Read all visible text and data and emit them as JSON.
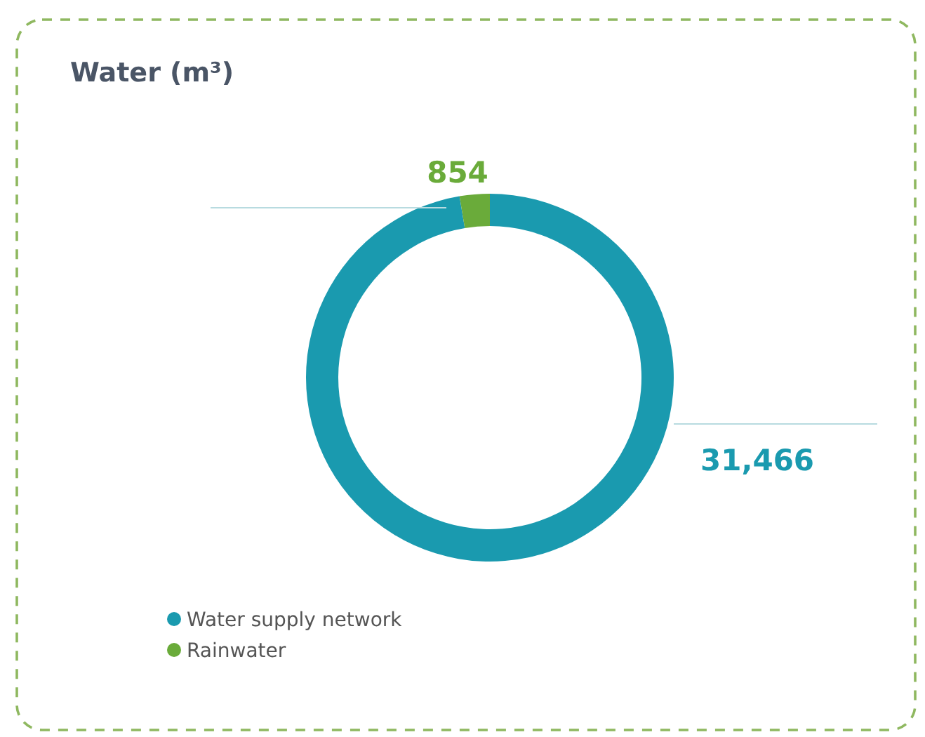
{
  "chart_data": {
    "type": "donut",
    "title": "Water (m³)",
    "categories": [
      "Water supply network",
      "Rainwater"
    ],
    "values": [
      31466,
      854
    ],
    "colors": [
      "#1a9aaf",
      "#6aab3a"
    ],
    "value_labels": [
      "31,466",
      "854"
    ],
    "legend": "bottom left"
  }
}
